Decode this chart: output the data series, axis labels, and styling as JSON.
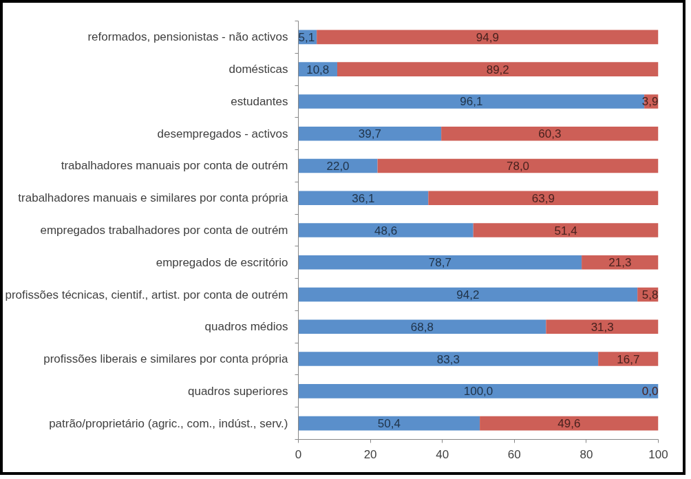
{
  "chart_data": {
    "type": "bar",
    "orientation": "horizontal",
    "stacked": true,
    "categories": [
      "reformados, pensionistas - não activos",
      "domésticas",
      "estudantes",
      "desempregados - activos",
      "trabalhadores manuais por conta de outrém",
      "trabalhadores manuais e similares por conta própria",
      "empregados trabalhadores por conta de outrém",
      "empregados de escritório",
      "profissões técnicas, cientif., artist. por conta de outrém",
      "quadros médios",
      "profissões liberais e similares por conta própria",
      "quadros superiores",
      "patrão/proprietário (agric., com., indúst., serv.)"
    ],
    "series": [
      {
        "color": "#5a8fcb",
        "values": [
          5.1,
          10.8,
          96.1,
          39.7,
          22.0,
          36.1,
          48.6,
          78.7,
          94.2,
          68.8,
          83.3,
          100.0,
          50.4
        ],
        "value_labels": [
          "5,1",
          "10,8",
          "96,1",
          "39,7",
          "22,0",
          "36,1",
          "48,6",
          "78,7",
          "94,2",
          "68,8",
          "83,3",
          "100,0",
          "50,4"
        ]
      },
      {
        "color": "#cd5f57",
        "values": [
          94.9,
          89.2,
          3.9,
          60.3,
          78.0,
          63.9,
          51.4,
          21.3,
          5.8,
          31.3,
          16.7,
          0.0,
          49.6
        ],
        "value_labels": [
          "94,9",
          "89,2",
          "3,9",
          "60,3",
          "78,0",
          "63,9",
          "51,4",
          "21,3",
          "5,8",
          "31,3",
          "16,7",
          "0,0",
          "49,6"
        ]
      }
    ],
    "xlim": [
      0,
      100
    ],
    "xticks": [
      0,
      20,
      40,
      60,
      80,
      100
    ]
  }
}
